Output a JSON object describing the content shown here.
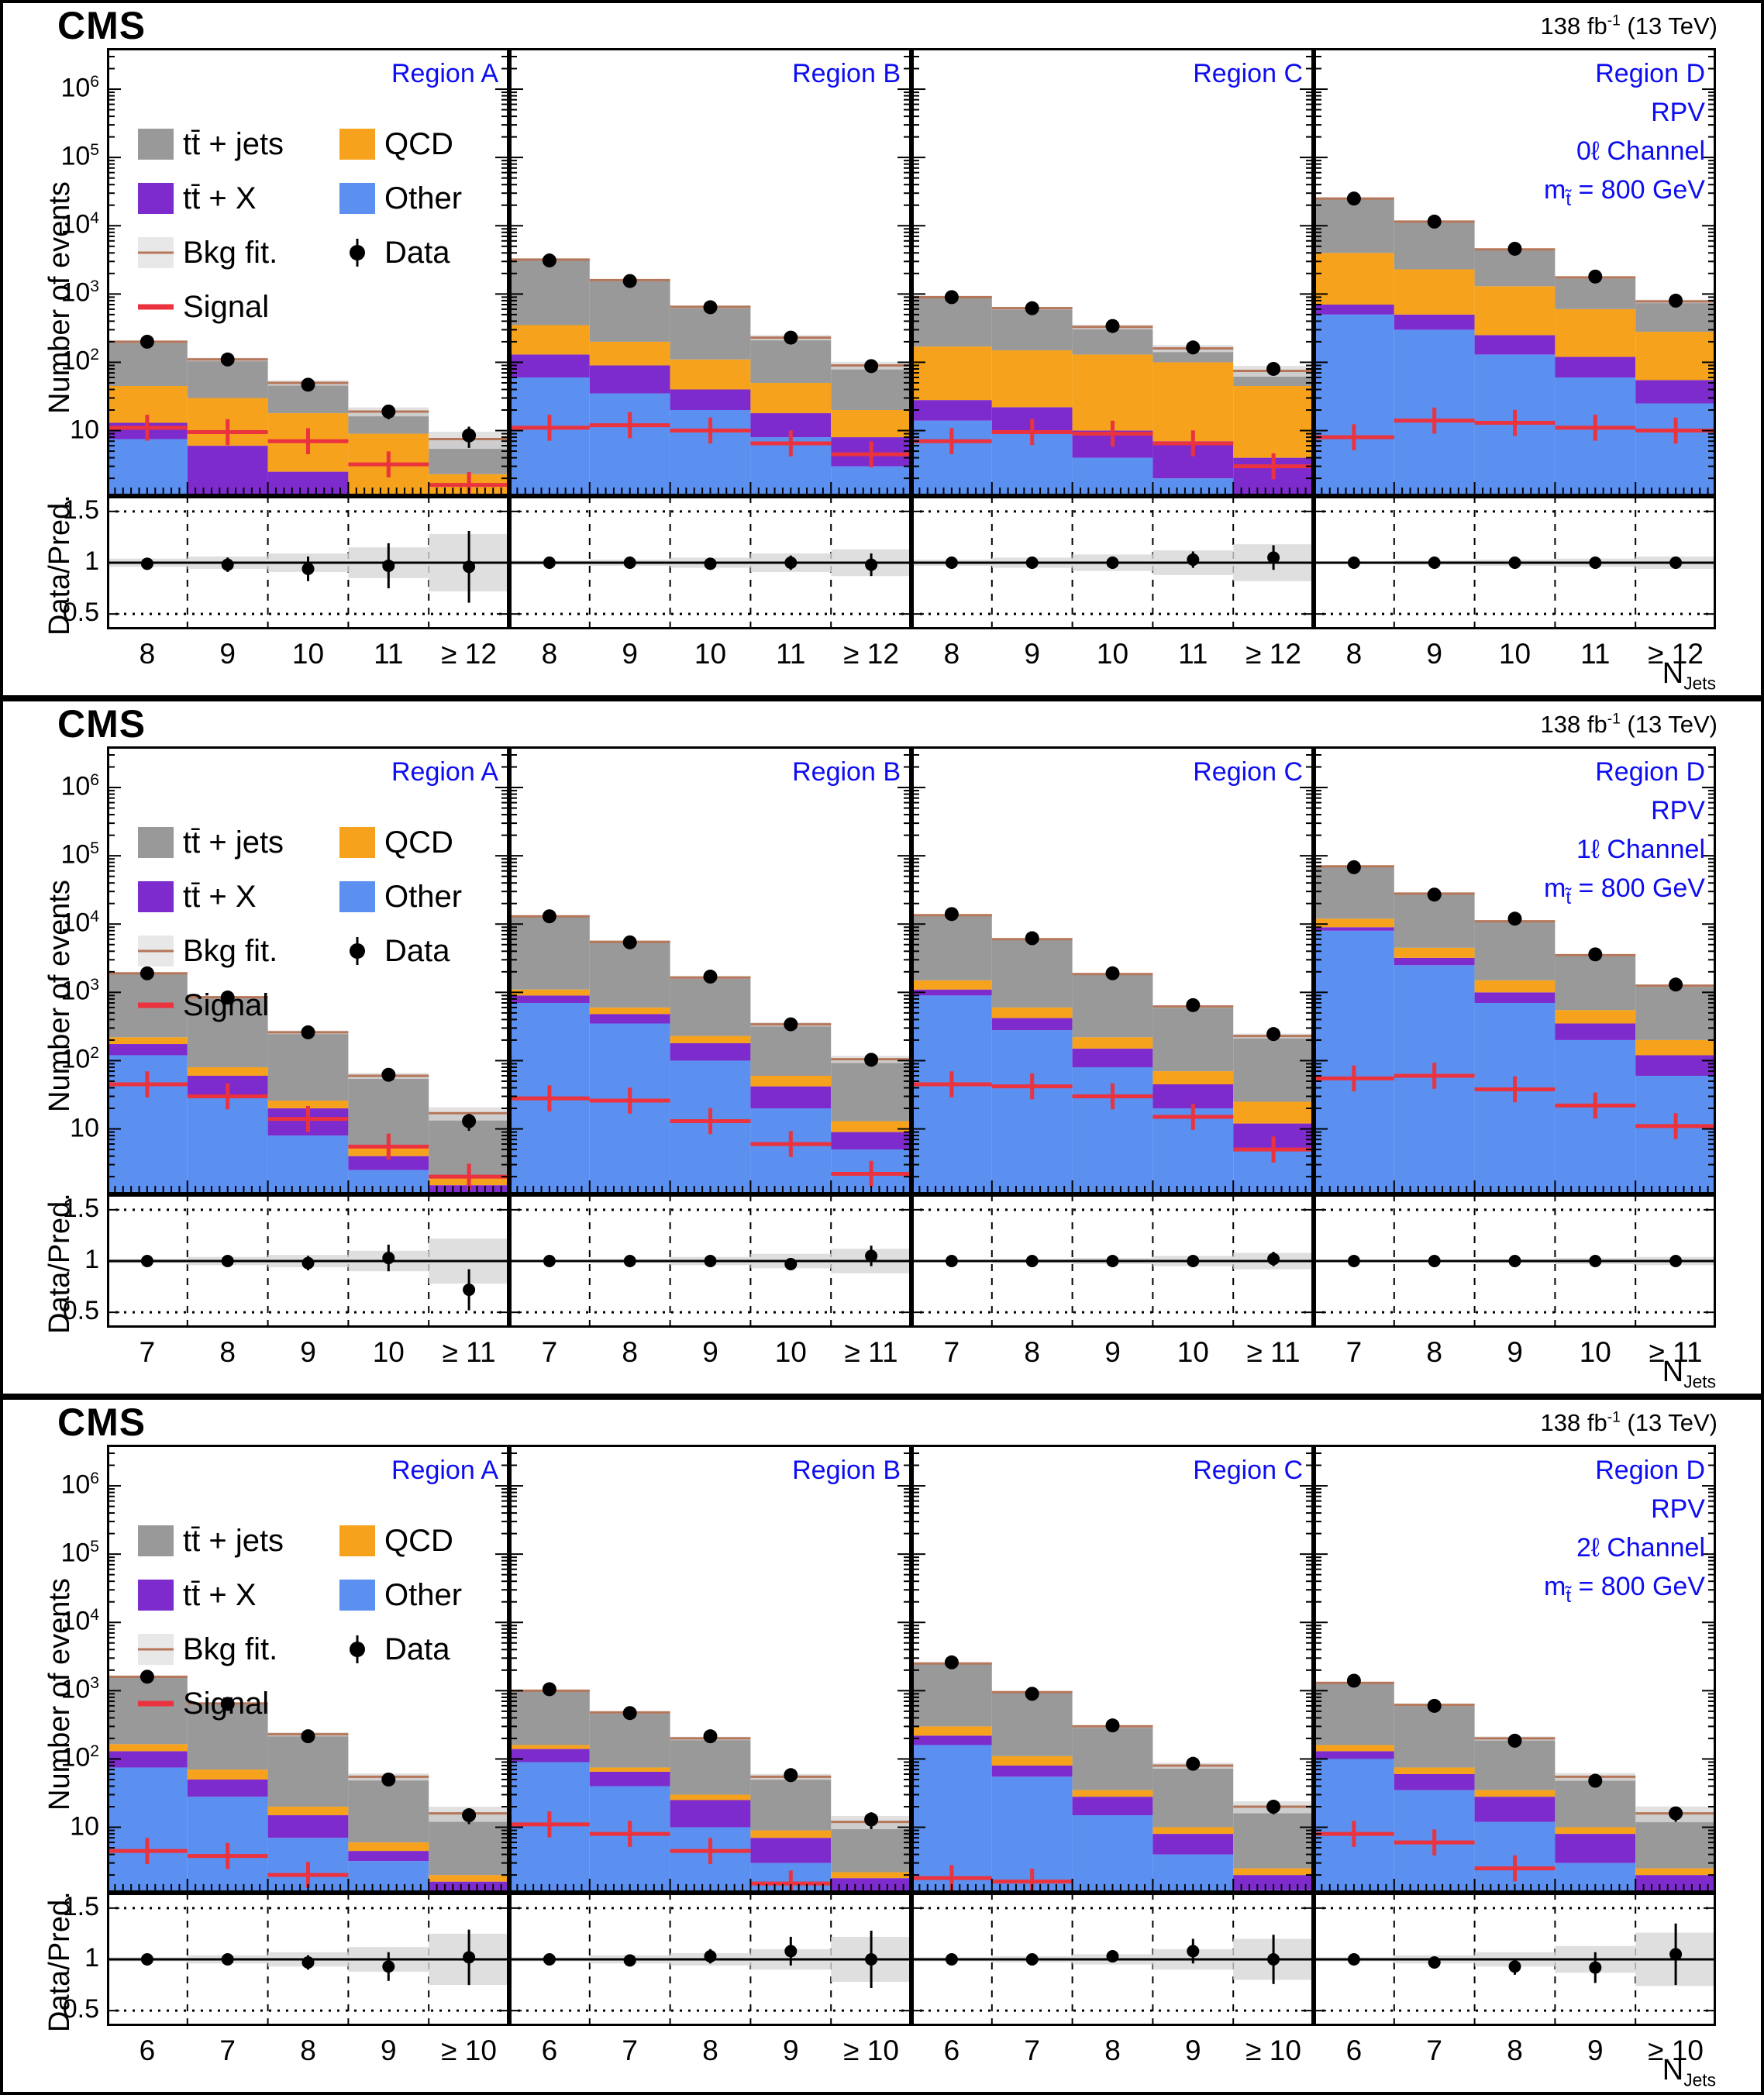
{
  "header": {
    "experiment": "CMS",
    "lumi_pre": "138 fb",
    "lumi_sup": "-1",
    "lumi_post": " (13 TeV)"
  },
  "axes": {
    "y_main_label": "Number of events",
    "y_ratio_label": "Data/Pred.",
    "x_title_pre": "N",
    "x_title_sub": "Jets",
    "y_ticks": [
      {
        "base": "10",
        "exp": "6"
      },
      {
        "base": "10",
        "exp": "5"
      },
      {
        "base": "10",
        "exp": "4"
      },
      {
        "base": "10",
        "exp": "3"
      },
      {
        "base": "10",
        "exp": "2"
      },
      {
        "base": "10",
        "exp": ""
      }
    ],
    "ratio_ticks": [
      "1.5",
      "1",
      "0.5"
    ]
  },
  "legend": {
    "ttjets": "tt̄ + jets",
    "ttx": "tt̄ + X",
    "bkgfit": "Bkg fit.",
    "signal": "Signal",
    "qcd": "QCD",
    "other": "Other",
    "data": "Data"
  },
  "colors": {
    "ttjets": "#999999",
    "ttx": "#7d2bcc",
    "qcd": "#f6a21c",
    "other": "#5b8ff0",
    "signal": "#ea333e",
    "bkgfit_line": "#b5765a",
    "bkgfit_band": "#d9d9d9",
    "region_label": "#0d0df0",
    "data_marker": "#000000"
  },
  "chart_data": {
    "type": "bar",
    "subtype": "stacked-log-histograms-with-ratio",
    "ylim_main": [
      1.1,
      4000000
    ],
    "ylim_ratio": [
      0.35,
      1.65
    ],
    "grid": "ratio-panel dashed bin separators, dotted lines at 0.5/1/1.5",
    "rows": [
      {
        "channel_label": "0ℓ Channel",
        "signal_label": "RPV",
        "mass_pre": "m",
        "mass_sub": "t̃",
        "mass_post": " = 800 GeV",
        "bin_labels": [
          "8",
          "9",
          "10",
          "11",
          "≥ 12"
        ],
        "panels": [
          {
            "region": "Region A",
            "series": {
              "other": [
                7.5,
                0.9,
                0.5,
                0.3,
                0.2
              ],
              "ttx": [
                5.5,
                5.1,
                2.0,
                0.7,
                0.3
              ],
              "qcd": [
                32,
                24,
                15.5,
                8,
                1.8
              ],
              "ttjets": [
                155,
                80,
                32,
                10,
                5.2
              ]
            },
            "data": [
              200,
              110,
              47,
              19,
              8.5
            ],
            "signal": [
              11,
              9.5,
              7,
              3.2,
              1.6
            ],
            "ratio": [
              0.99,
              0.98,
              0.94,
              0.97,
              0.96
            ],
            "ratio_err": [
              0.04,
              0.07,
              0.12,
              0.22,
              0.35
            ],
            "fit_band_frac": [
              0.04,
              0.06,
              0.09,
              0.15,
              0.28
            ]
          },
          {
            "region": "Region B",
            "series": {
              "other": [
                60,
                35,
                20,
                8,
                3
              ],
              "ttx": [
                70,
                55,
                20,
                10,
                5
              ],
              "qcd": [
                220,
                110,
                70,
                32,
                12
              ],
              "ttjets": [
                2850,
                1400,
                540,
                180,
                70
              ]
            },
            "data": [
              3100,
              1550,
              640,
              230,
              88
            ],
            "signal": [
              11,
              12,
              10,
              6.5,
              4.5
            ],
            "ratio": [
              1.0,
              1.0,
              0.99,
              1.0,
              0.98
            ],
            "ratio_err": [
              0.02,
              0.03,
              0.04,
              0.07,
              0.11
            ],
            "fit_band_frac": [
              0.02,
              0.03,
              0.05,
              0.09,
              0.13
            ]
          },
          {
            "region": "Region C",
            "series": {
              "other": [
                14,
                9,
                4,
                2,
                1
              ],
              "ttx": [
                14,
                13,
                6,
                5,
                3
              ],
              "qcd": [
                142,
                128,
                120,
                93,
                41
              ],
              "ttjets": [
                730,
                470,
                200,
                60,
                30
              ]
            },
            "data": [
              900,
              620,
              340,
              165,
              80
            ],
            "signal": [
              7,
              9.5,
              9,
              6.5,
              3
            ],
            "ratio": [
              1.0,
              1.0,
              1.0,
              1.03,
              1.05
            ],
            "ratio_err": [
              0.03,
              0.04,
              0.06,
              0.08,
              0.12
            ],
            "fit_band_frac": [
              0.03,
              0.05,
              0.08,
              0.12,
              0.18
            ]
          },
          {
            "region": "Region D",
            "series": {
              "other": [
                500,
                300,
                130,
                60,
                25
              ],
              "ttx": [
                200,
                200,
                120,
                60,
                30
              ],
              "qcd": [
                3300,
                1800,
                1050,
                480,
                225
              ],
              "ttjets": [
                21000,
                9200,
                3200,
                1150,
                500
              ]
            },
            "data": [
              25000,
              11500,
              4600,
              1800,
              800
            ],
            "signal": [
              8,
              14,
              13,
              11,
              10
            ],
            "ratio": [
              1.0,
              1.0,
              1.0,
              1.0,
              1.0
            ],
            "ratio_err": [
              0.01,
              0.01,
              0.02,
              0.03,
              0.04
            ],
            "fit_band_frac": [
              0.01,
              0.02,
              0.03,
              0.04,
              0.06
            ]
          }
        ]
      },
      {
        "channel_label": "1ℓ Channel",
        "signal_label": "RPV",
        "mass_pre": "m",
        "mass_sub": "t̃",
        "mass_post": " = 800 GeV",
        "bin_labels": [
          "7",
          "8",
          "9",
          "10",
          "≥ 11"
        ],
        "panels": [
          {
            "region": "Region A",
            "series": {
              "other": [
                120,
                30,
                8,
                2.5,
                0.8
              ],
              "ttx": [
                55,
                30,
                12,
                1.5,
                0.7
              ],
              "qcd": [
                45,
                20,
                6,
                1.5,
                0.5
              ],
              "ttjets": [
                1680,
                770,
                234,
                54.5,
                15
              ]
            },
            "data": [
              1900,
              840,
              260,
              62,
              13
            ],
            "signal": [
              45,
              30,
              14,
              5.5,
              2
            ],
            "ratio": [
              1.0,
              1.0,
              0.98,
              1.03,
              0.72
            ],
            "ratio_err": [
              0.025,
              0.04,
              0.07,
              0.13,
              0.2
            ],
            "fit_band_frac": [
              0.02,
              0.04,
              0.06,
              0.1,
              0.22
            ]
          },
          {
            "region": "Region B",
            "series": {
              "other": [
                700,
                350,
                100,
                20,
                5
              ],
              "ttx": [
                200,
                130,
                80,
                22,
                4
              ],
              "qcd": [
                200,
                120,
                50,
                18,
                4
              ],
              "ttjets": [
                11900,
                4900,
                1420,
                280,
                92
              ]
            },
            "data": [
              13000,
              5400,
              1700,
              340,
              103
            ],
            "signal": [
              28,
              26,
              13,
              6,
              2.2
            ],
            "ratio": [
              1.0,
              1.0,
              1.0,
              0.97,
              1.05
            ],
            "ratio_err": [
              0.01,
              0.02,
              0.03,
              0.06,
              0.1
            ],
            "fit_band_frac": [
              0.01,
              0.02,
              0.04,
              0.07,
              0.12
            ]
          },
          {
            "region": "Region C",
            "series": {
              "other": [
                900,
                280,
                80,
                20,
                5
              ],
              "ttx": [
                200,
                140,
                70,
                25,
                7
              ],
              "qcd": [
                400,
                180,
                70,
                25,
                13
              ],
              "ttjets": [
                12000,
                5400,
                1630,
                550,
                205
              ]
            },
            "data": [
              14000,
              6200,
              1900,
              650,
              245
            ],
            "signal": [
              45,
              42,
              30,
              15,
              5
            ],
            "ratio": [
              1.0,
              1.0,
              1.0,
              1.0,
              1.02
            ],
            "ratio_err": [
              0.01,
              0.015,
              0.025,
              0.04,
              0.07
            ],
            "fit_band_frac": [
              0.01,
              0.02,
              0.03,
              0.05,
              0.08
            ]
          },
          {
            "region": "Region D",
            "series": {
              "other": [
                8000,
                2500,
                700,
                200,
                60
              ],
              "ttx": [
                1000,
                700,
                300,
                150,
                60
              ],
              "qcd": [
                3000,
                1300,
                500,
                200,
                80
              ],
              "ttjets": [
                58000,
                23500,
                9500,
                2950,
                1050
              ]
            },
            "data": [
              68000,
              27000,
              12000,
              3600,
              1300
            ],
            "signal": [
              55,
              60,
              38,
              22,
              11
            ],
            "ratio": [
              1.0,
              1.0,
              1.0,
              1.0,
              1.0
            ],
            "ratio_err": [
              0.005,
              0.008,
              0.012,
              0.02,
              0.03
            ],
            "fit_band_frac": [
              0.01,
              0.01,
              0.02,
              0.03,
              0.04
            ]
          }
        ]
      },
      {
        "channel_label": "2ℓ Channel",
        "signal_label": "RPV",
        "mass_pre": "m",
        "mass_sub": "t̃",
        "mass_post": " = 800 GeV",
        "bin_labels": [
          "6",
          "7",
          "8",
          "9",
          "≥ 10"
        ],
        "panels": [
          {
            "region": "Region A",
            "series": {
              "other": [
                75,
                28,
                7,
                3.2,
                1
              ],
              "ttx": [
                55,
                22,
                8,
                1.3,
                0.6
              ],
              "qcd": [
                35,
                20,
                5,
                1.5,
                0.4
              ],
              "ttjets": [
                1435,
                580,
                210,
                49,
                14
              ]
            },
            "data": [
              1600,
              640,
              215,
              50,
              15
            ],
            "signal": [
              4.5,
              3.8,
              2.0,
              0.8,
              0.4
            ],
            "ratio": [
              1.0,
              1.0,
              0.97,
              0.93,
              1.02
            ],
            "ratio_err": [
              0.03,
              0.04,
              0.07,
              0.14,
              0.27
            ],
            "fit_band_frac": [
              0.02,
              0.04,
              0.07,
              0.12,
              0.25
            ]
          },
          {
            "region": "Region B",
            "series": {
              "other": [
                90,
                40,
                10,
                3,
                1
              ],
              "ttx": [
                50,
                25,
                15,
                4,
                0.8
              ],
              "qcd": [
                20,
                10,
                5,
                2,
                0.4
              ],
              "ttjets": [
                840,
                405,
                170,
                46,
                9.8
              ]
            },
            "data": [
              1050,
              470,
              215,
              58,
              13
            ],
            "signal": [
              11,
              8,
              4.5,
              1.5,
              0.5
            ],
            "ratio": [
              1.0,
              0.99,
              1.03,
              1.08,
              1.0
            ],
            "ratio_err": [
              0.03,
              0.05,
              0.07,
              0.14,
              0.28
            ],
            "fit_band_frac": [
              0.02,
              0.04,
              0.06,
              0.1,
              0.22
            ]
          },
          {
            "region": "Region C",
            "series": {
              "other": [
                160,
                55,
                15,
                4,
                1.2
              ],
              "ttx": [
                60,
                25,
                13,
                4,
                0.8
              ],
              "qcd": [
                80,
                30,
                7,
                2,
                0.5
              ],
              "ttjets": [
                2200,
                840,
                265,
                70,
                17.5
              ]
            },
            "data": [
              2600,
              900,
              310,
              85,
              20
            ],
            "signal": [
              1.8,
              1.6,
              0.8,
              0.4,
              0.2
            ],
            "ratio": [
              1.0,
              1.0,
              1.03,
              1.08,
              1.0
            ],
            "ratio_err": [
              0.02,
              0.035,
              0.06,
              0.12,
              0.24
            ],
            "fit_band_frac": [
              0.02,
              0.03,
              0.05,
              0.1,
              0.2
            ]
          },
          {
            "region": "Region D",
            "series": {
              "other": [
                100,
                35,
                12,
                3,
                1
              ],
              "ttx": [
                30,
                25,
                16,
                5,
                1
              ],
              "qcd": [
                30,
                15,
                7,
                2,
                0.5
              ],
              "ttjets": [
                1140,
                545,
                165,
                45,
                13.5
              ]
            },
            "data": [
              1400,
              600,
              185,
              48,
              16
            ],
            "signal": [
              8,
              6,
              2.5,
              1.0,
              0.4
            ],
            "ratio": [
              1.0,
              0.97,
              0.93,
              0.92,
              1.05
            ],
            "ratio_err": [
              0.03,
              0.045,
              0.08,
              0.15,
              0.3
            ],
            "fit_band_frac": [
              0.02,
              0.04,
              0.07,
              0.13,
              0.26
            ]
          }
        ]
      }
    ]
  }
}
